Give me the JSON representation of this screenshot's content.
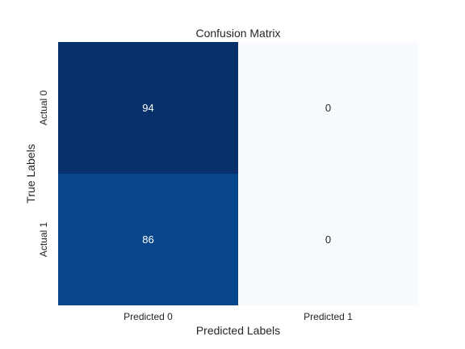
{
  "chart_data": {
    "type": "heatmap",
    "title": "Confusion Matrix",
    "xlabel": "Predicted Labels",
    "ylabel": "True Labels",
    "x_categories": [
      "Predicted 0",
      "Predicted 1"
    ],
    "y_categories": [
      "Actual 0",
      "Actual 1"
    ],
    "values": [
      [
        94,
        0
      ],
      [
        86,
        0
      ]
    ],
    "colormap": "Blues",
    "color_low": "#f7fbff",
    "color_high": "#08306b",
    "colorbar": false,
    "grid": false
  }
}
